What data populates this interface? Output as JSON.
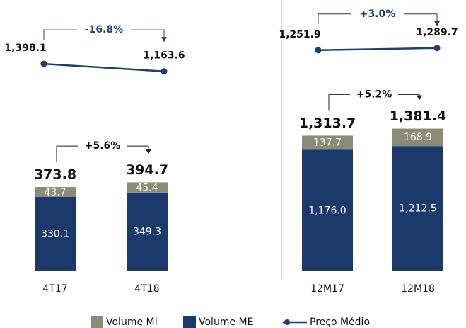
{
  "chart_data": [
    {
      "type": "bar",
      "stacked": true,
      "categories": [
        "4T17",
        "4T18"
      ],
      "series": [
        {
          "name": "Volume MI",
          "color": "#8c8b78",
          "values": [
            43.7,
            45.4
          ]
        },
        {
          "name": "Volume ME",
          "color": "#1b3a6b",
          "values": [
            330.1,
            349.3
          ]
        },
        {
          "name": "Preço Médio",
          "color": "#1f3f6e",
          "type": "line",
          "axis": "y2",
          "values": [
            1398.1,
            1163.6
          ],
          "value_labels": [
            "1,398.1",
            "1,163.6"
          ]
        }
      ],
      "totals": [
        373.8,
        394.7
      ],
      "ylim": [
        0,
        1100
      ],
      "y2lim": [
        300,
        2500
      ],
      "bar_change": "+5.6%",
      "line_change": "-16.8%"
    },
    {
      "type": "bar",
      "stacked": true,
      "categories": [
        "12M17",
        "12M18"
      ],
      "series": [
        {
          "name": "Volume MI",
          "color": "#8c8b78",
          "values": [
            137.7,
            168.9
          ]
        },
        {
          "name": "Volume ME",
          "color": "#1b3a6b",
          "values": [
            1176.0,
            1212.5
          ],
          "value_labels": [
            "1,176.0",
            "1,212.5"
          ]
        },
        {
          "name": "Preço Médio",
          "color": "#1f3f6e",
          "type": "line",
          "axis": "y2",
          "values": [
            1251.9,
            1289.7
          ],
          "value_labels": [
            "1,251.9",
            "1,289.7"
          ]
        }
      ],
      "totals": [
        1313.7,
        1381.4
      ],
      "total_labels": [
        "1,313.7",
        "1,381.4"
      ],
      "ylim": [
        0,
        2400
      ],
      "y2lim": [
        380,
        1640
      ],
      "bar_change": "+5.2%",
      "line_change": "+3.0%"
    }
  ]
}
